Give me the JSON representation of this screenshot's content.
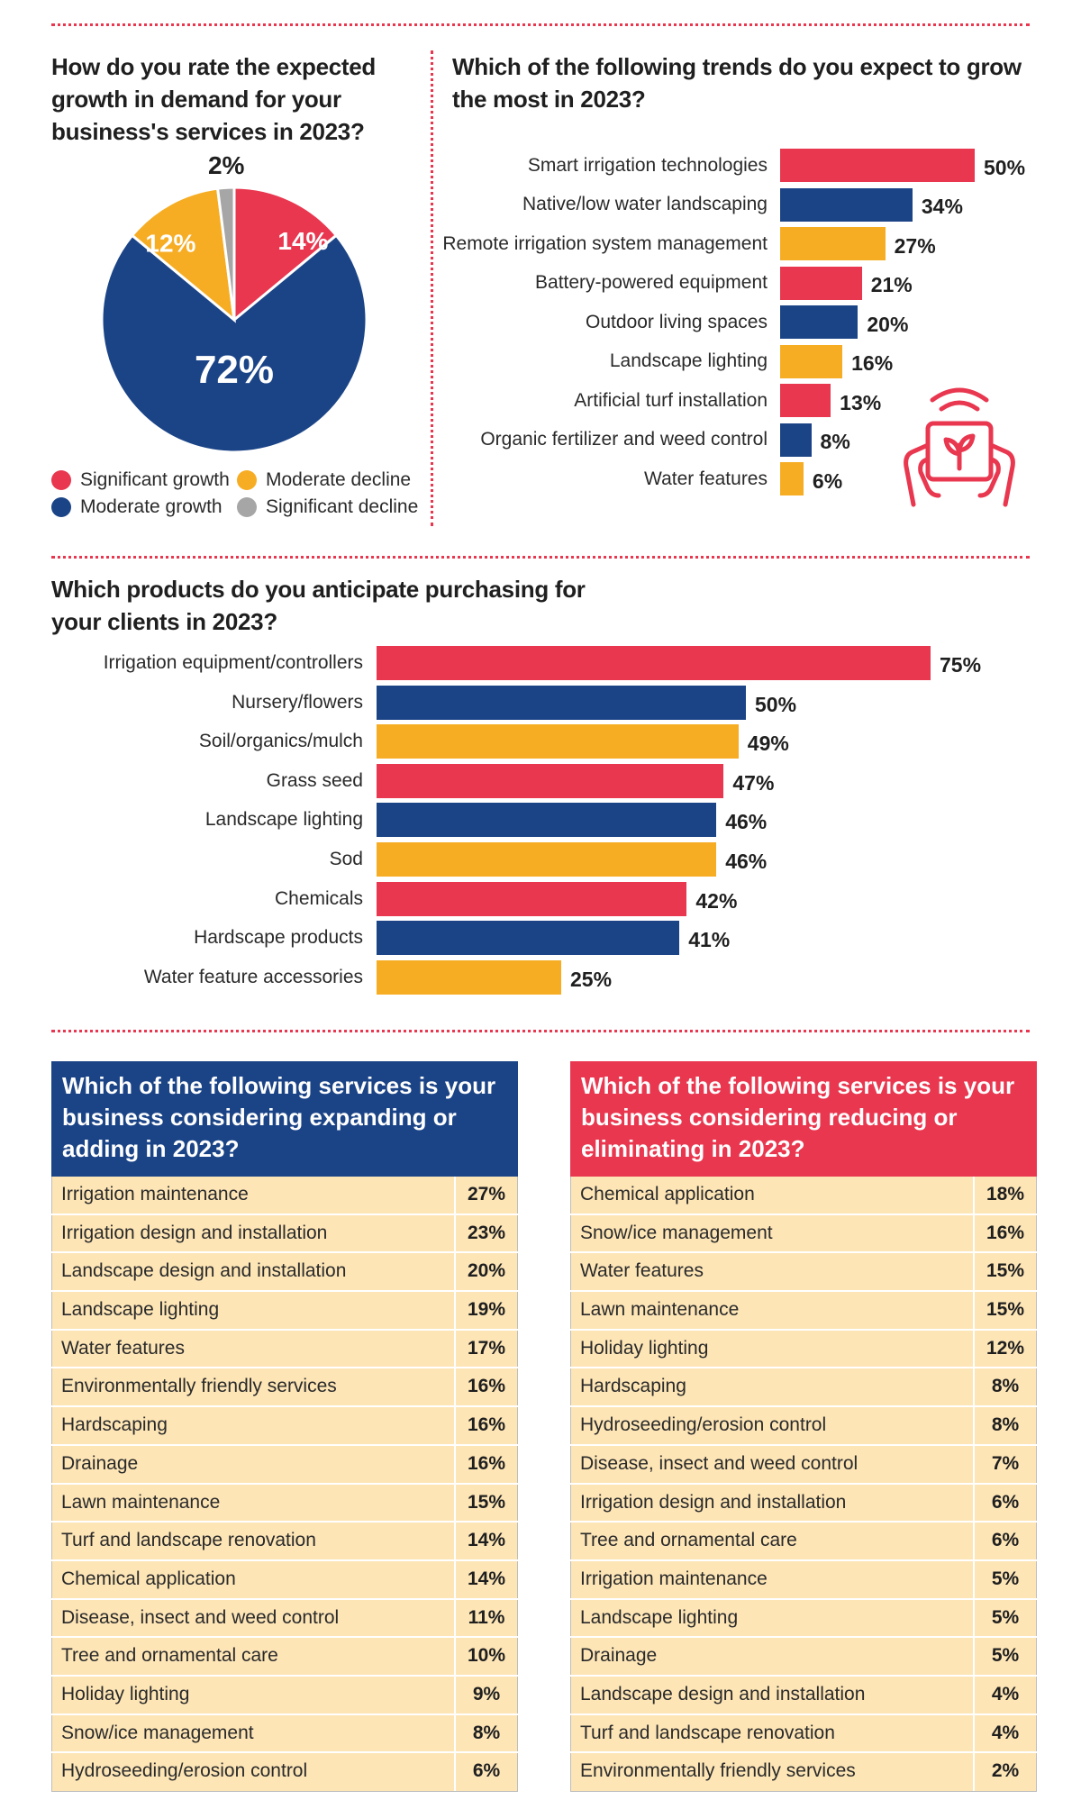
{
  "colors": {
    "red": "#e8374f",
    "blue": "#1b4487",
    "orange": "#f6ad24",
    "gray": "#a6a6a6",
    "table_bg": "#fde5b6"
  },
  "pie": {
    "title": "How do you rate the expected growth in demand for your business's services in 2023?",
    "legend": [
      {
        "label": "Significant growth",
        "color": "#e8374f"
      },
      {
        "label": "Moderate decline",
        "color": "#f6ad24"
      },
      {
        "label": "Moderate growth",
        "color": "#1b4487"
      },
      {
        "label": "Significant decline",
        "color": "#a6a6a6"
      }
    ]
  },
  "trends": {
    "title": "Which of the following trends do you expect to grow the most in 2023?",
    "icon": "smart-device-plant-icon"
  },
  "products": {
    "title": "Which products do you anticipate purchasing for your clients in 2023?"
  },
  "expanding": {
    "title": "Which of the following services is your business considering expanding or adding in 2023?",
    "rows": [
      {
        "name": "Irrigation maintenance",
        "value": "27%"
      },
      {
        "name": "Irrigation design and installation",
        "value": "23%"
      },
      {
        "name": "Landscape design and installation",
        "value": "20%"
      },
      {
        "name": "Landscape lighting",
        "value": "19%"
      },
      {
        "name": "Water features",
        "value": "17%"
      },
      {
        "name": "Environmentally friendly services",
        "value": "16%"
      },
      {
        "name": "Hardscaping",
        "value": "16%"
      },
      {
        "name": "Drainage",
        "value": "16%"
      },
      {
        "name": "Lawn maintenance",
        "value": "15%"
      },
      {
        "name": "Turf and landscape renovation",
        "value": "14%"
      },
      {
        "name": "Chemical application",
        "value": "14%"
      },
      {
        "name": "Disease, insect and weed control",
        "value": "11%"
      },
      {
        "name": "Tree and ornamental care",
        "value": "10%"
      },
      {
        "name": "Holiday lighting",
        "value": "9%"
      },
      {
        "name": "Snow/ice management",
        "value": "8%"
      },
      {
        "name": "Hydroseeding/erosion control",
        "value": "6%"
      }
    ]
  },
  "reducing": {
    "title": "Which of the following services is your business considering reducing or eliminating in 2023?",
    "rows": [
      {
        "name": "Chemical application",
        "value": "18%"
      },
      {
        "name": "Snow/ice management",
        "value": "16%"
      },
      {
        "name": "Water features",
        "value": "15%"
      },
      {
        "name": "Lawn maintenance",
        "value": "15%"
      },
      {
        "name": "Holiday lighting",
        "value": "12%"
      },
      {
        "name": "Hardscaping",
        "value": "8%"
      },
      {
        "name": "Hydroseeding/erosion control",
        "value": "8%"
      },
      {
        "name": "Disease, insect and weed control",
        "value": "7%"
      },
      {
        "name": "Irrigation design and installation",
        "value": "6%"
      },
      {
        "name": "Tree and ornamental care",
        "value": "6%"
      },
      {
        "name": "Irrigation maintenance",
        "value": "5%"
      },
      {
        "name": "Landscape lighting",
        "value": "5%"
      },
      {
        "name": "Drainage",
        "value": "5%"
      },
      {
        "name": "Landscape design and installation",
        "value": "4%"
      },
      {
        "name": "Turf and landscape renovation",
        "value": "4%"
      },
      {
        "name": "Environmentally friendly services",
        "value": "2%"
      }
    ]
  },
  "chart_data": [
    {
      "type": "pie",
      "title": "How do you rate the expected growth in demand for your business's services in 2023?",
      "slices": [
        {
          "label": "Significant growth",
          "value": 14,
          "display": "14%",
          "color": "#e8374f"
        },
        {
          "label": "Moderate growth",
          "value": 72,
          "display": "72%",
          "color": "#1b4487"
        },
        {
          "label": "Moderate decline",
          "value": 12,
          "display": "12%",
          "color": "#f6ad24"
        },
        {
          "label": "Significant decline",
          "value": 2,
          "display": "2%",
          "color": "#a6a6a6"
        }
      ]
    },
    {
      "type": "bar",
      "orientation": "horizontal",
      "title": "Which of the following trends do you expect to grow the most in 2023?",
      "categories": [
        "Smart irrigation technologies",
        "Native/low water landscaping",
        "Remote irrigation system management",
        "Battery-powered equipment",
        "Outdoor living spaces",
        "Landscape lighting",
        "Artificial turf installation",
        "Organic fertilizer and weed control",
        "Water features"
      ],
      "values": [
        50,
        34,
        27,
        21,
        20,
        16,
        13,
        8,
        6
      ],
      "labels": [
        "50%",
        "34%",
        "27%",
        "21%",
        "20%",
        "16%",
        "13%",
        "8%",
        "6%"
      ],
      "colors": [
        "#e8374f",
        "#1b4487",
        "#f6ad24",
        "#e8374f",
        "#1b4487",
        "#f6ad24",
        "#e8374f",
        "#1b4487",
        "#f6ad24"
      ],
      "xlim": [
        0,
        50
      ]
    },
    {
      "type": "bar",
      "orientation": "horizontal",
      "title": "Which products do you anticipate purchasing for your clients in 2023?",
      "categories": [
        "Irrigation equipment/controllers",
        "Nursery/flowers",
        "Soil/organics/mulch",
        "Grass seed",
        "Landscape lighting",
        "Sod",
        "Chemicals",
        "Hardscape products",
        "Water feature accessories"
      ],
      "values": [
        75,
        50,
        49,
        47,
        46,
        46,
        42,
        41,
        25
      ],
      "labels": [
        "75%",
        "50%",
        "49%",
        "47%",
        "46%",
        "46%",
        "42%",
        "41%",
        "25%"
      ],
      "colors": [
        "#e8374f",
        "#1b4487",
        "#f6ad24",
        "#e8374f",
        "#1b4487",
        "#f6ad24",
        "#e8374f",
        "#1b4487",
        "#f6ad24"
      ],
      "xlim": [
        0,
        75
      ]
    }
  ]
}
